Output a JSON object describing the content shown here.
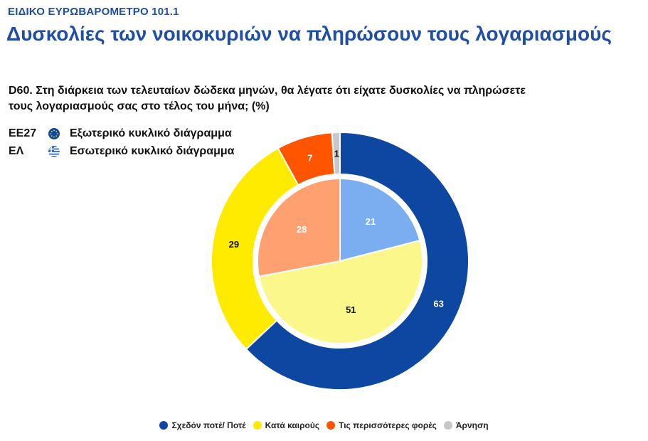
{
  "header": {
    "kicker": "ΕΙΔΙΚΟ ΕΥΡΩΒΑΡΟΜΕΤΡΟ 101.1",
    "title": "Δυσκολίες των νοικοκυριών να πληρώσουν τους λογαριασμούς"
  },
  "question": "D60. Στη διάρκεια των τελευταίων δώδεκα μηνών, θα λέγατε ότι είχατε δυσκολίες να πληρώσετε τους λογαριασμούς σας στο τέλος του μήνα; (%)",
  "ring_legend": [
    {
      "code": "ΕΕ27",
      "label": "Εξωτερικό κυκλικό διάγραμμα",
      "icon": "eu-flag-icon"
    },
    {
      "code": "ΕΛ",
      "label": "Εσωτερικό κυκλικό διάγραμμα",
      "icon": "greek-flag-icon"
    }
  ],
  "colors": {
    "eu_blue": "#1f4ea2",
    "gr_blue": "#2f6cc9",
    "outer": [
      "#0d47a1",
      "#ffeb00",
      "#ff5400",
      "#c8c8c8"
    ],
    "inner": [
      "#7aaef0",
      "#fbf78b",
      "#ffa070",
      "#c8c8c8"
    ]
  },
  "chart_data": {
    "type": "donut",
    "categories": [
      "Σχεδόν ποτέ/ Ποτέ",
      "Κατά καιρούς",
      "Τις περισσότερες φορές",
      "Άρνηση"
    ],
    "series": [
      {
        "name": "ΕΕ27",
        "ring": "outer",
        "values": [
          63,
          29,
          7,
          1
        ]
      },
      {
        "name": "ΕΛ",
        "ring": "inner",
        "values": [
          21,
          51,
          28,
          0
        ]
      }
    ],
    "legend_position": "bottom"
  }
}
